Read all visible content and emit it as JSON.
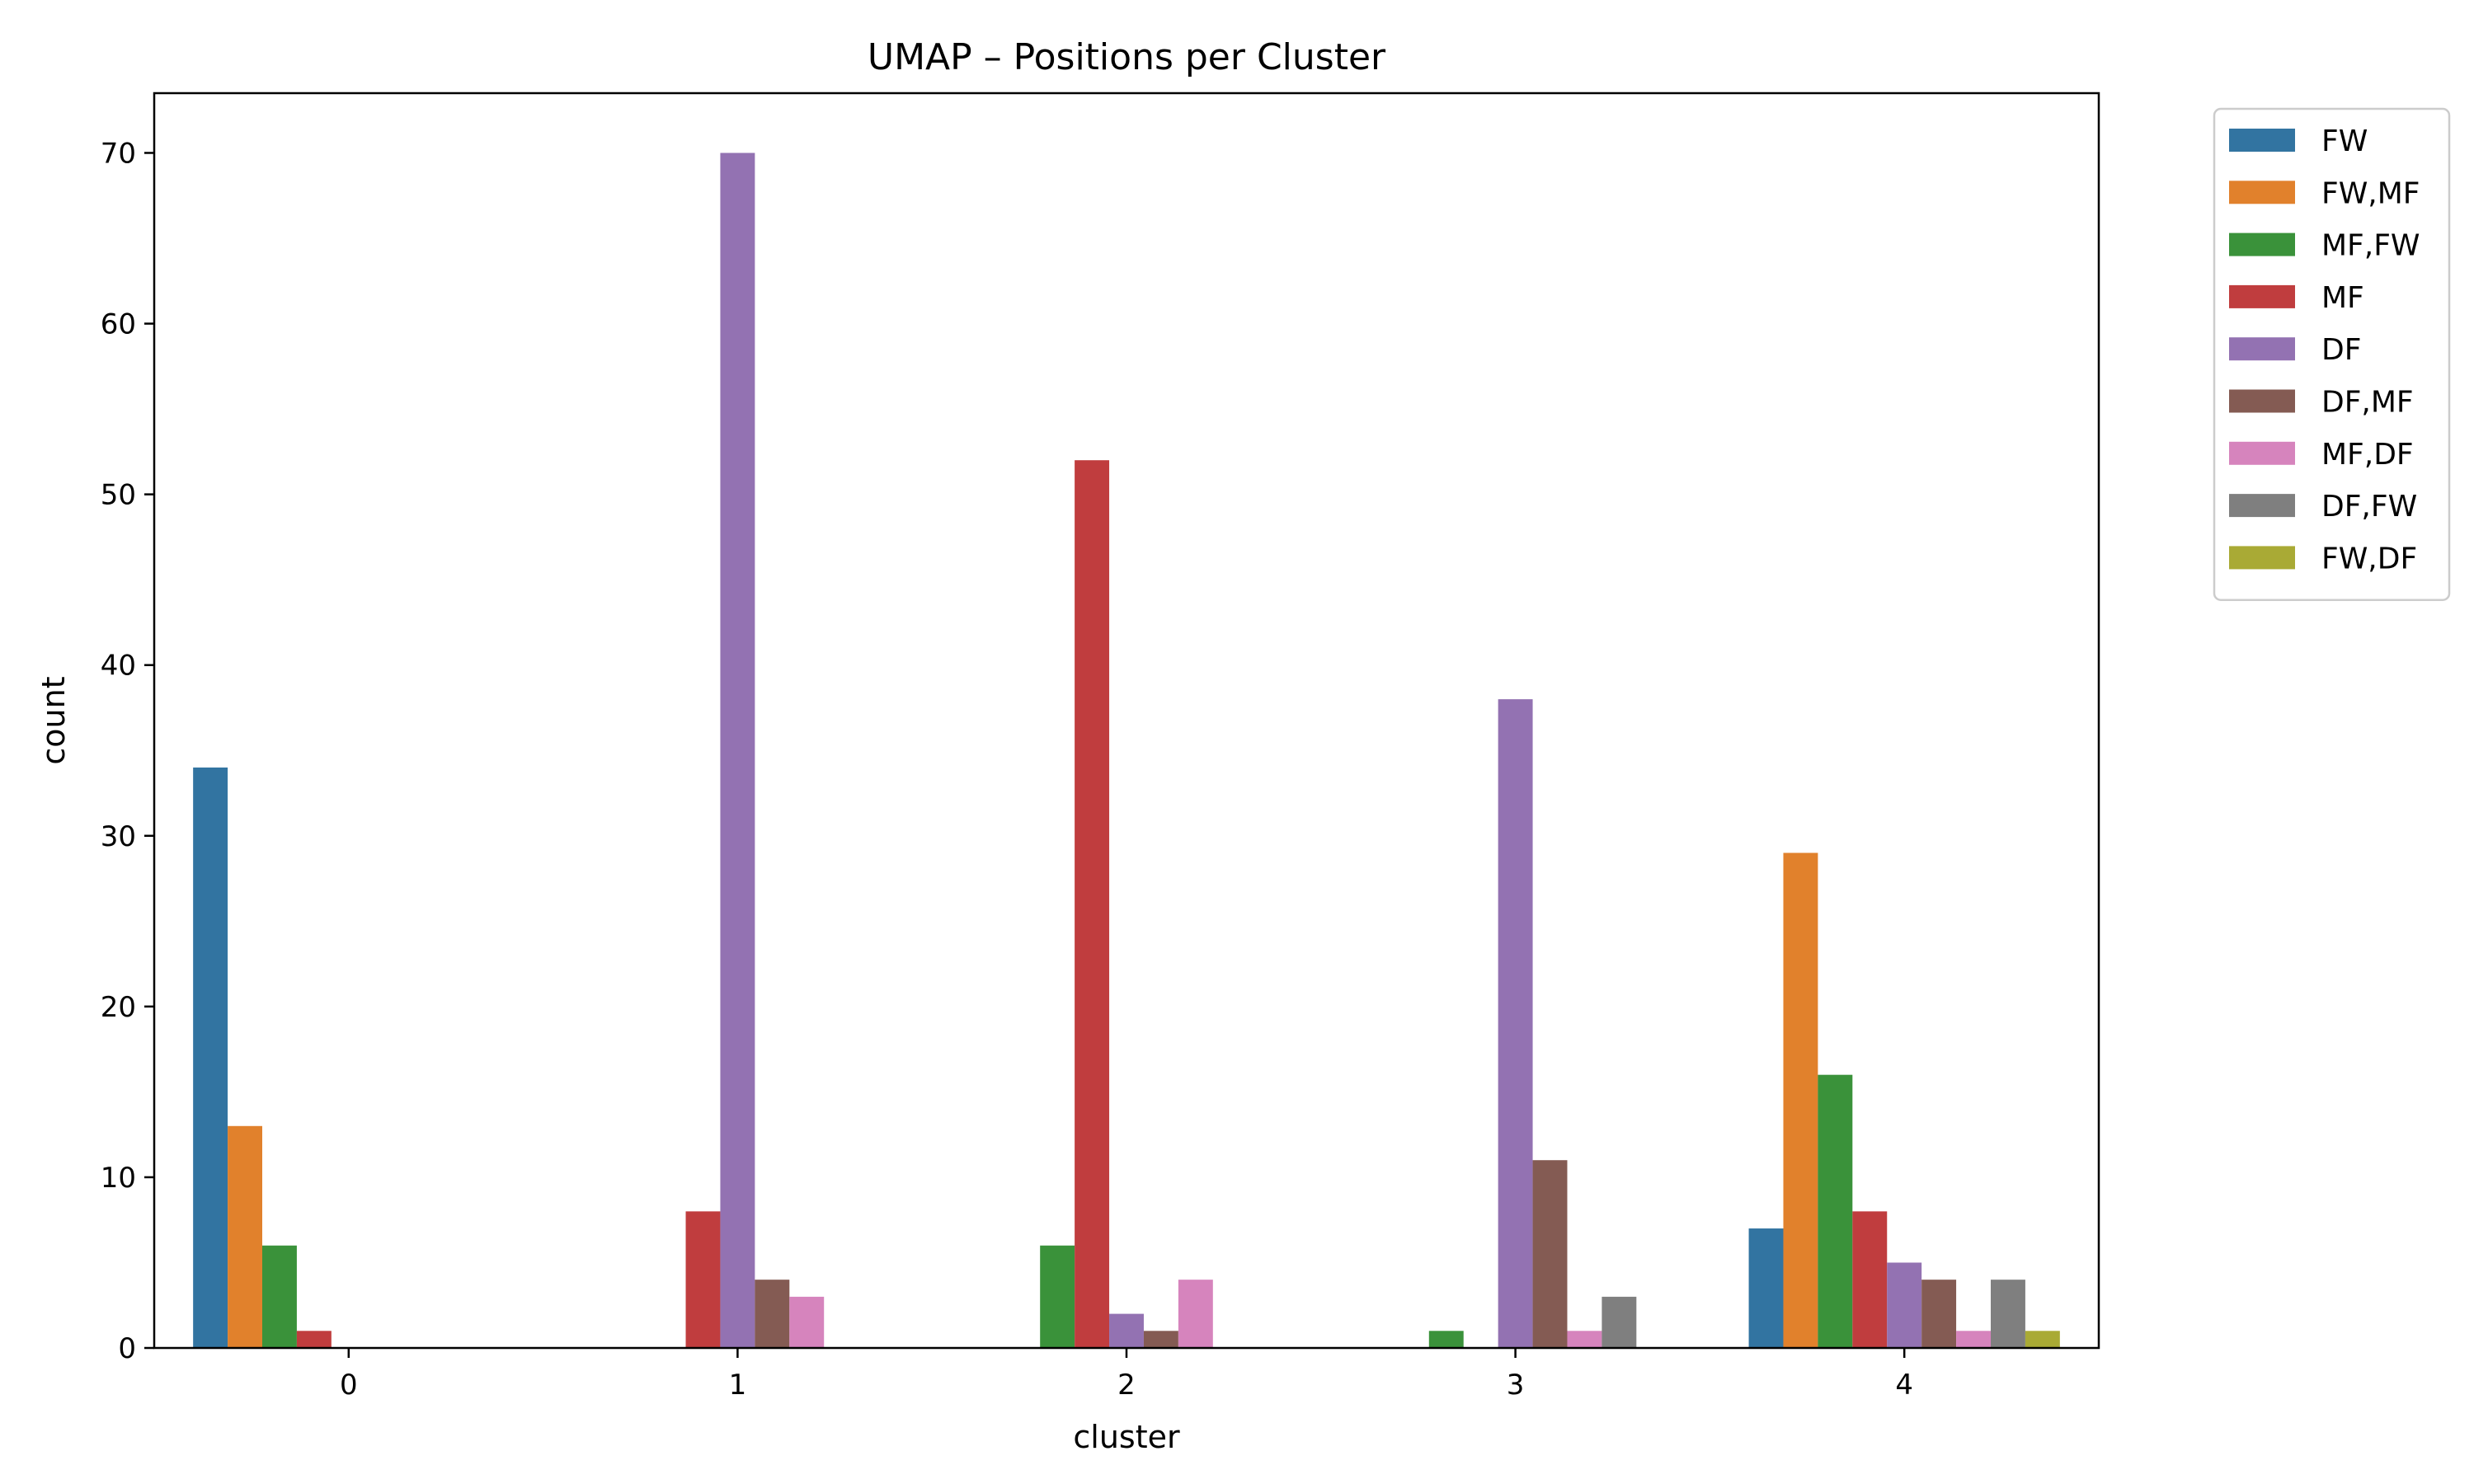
{
  "chart_data": {
    "type": "bar",
    "title": "UMAP – Positions per Cluster",
    "xlabel": "cluster",
    "ylabel": "count",
    "categories": [
      "0",
      "1",
      "2",
      "3",
      "4"
    ],
    "ylim": [
      0,
      73.5
    ],
    "yticks": [
      0,
      10,
      20,
      30,
      40,
      50,
      60,
      70
    ],
    "grid": false,
    "legend_position": "outside-right-top",
    "series": [
      {
        "name": "FW",
        "color": "#3274a1",
        "values": [
          34,
          0,
          0,
          0,
          7
        ]
      },
      {
        "name": "FW,MF",
        "color": "#e1812c",
        "values": [
          13,
          0,
          0,
          0,
          29
        ]
      },
      {
        "name": "MF,FW",
        "color": "#3a923a",
        "values": [
          6,
          0,
          6,
          1,
          16
        ]
      },
      {
        "name": "MF",
        "color": "#c03d3e",
        "values": [
          1,
          8,
          52,
          0,
          8
        ]
      },
      {
        "name": "DF",
        "color": "#9372b2",
        "values": [
          0,
          70,
          2,
          38,
          5
        ]
      },
      {
        "name": "DF,MF",
        "color": "#845b53",
        "values": [
          0,
          4,
          1,
          11,
          4
        ]
      },
      {
        "name": "MF,DF",
        "color": "#d684bd",
        "values": [
          0,
          3,
          4,
          1,
          1
        ]
      },
      {
        "name": "DF,FW",
        "color": "#7f7f7f",
        "values": [
          0,
          0,
          0,
          3,
          4
        ]
      },
      {
        "name": "FW,DF",
        "color": "#a9aa35",
        "values": [
          0,
          0,
          0,
          0,
          1
        ]
      }
    ]
  }
}
